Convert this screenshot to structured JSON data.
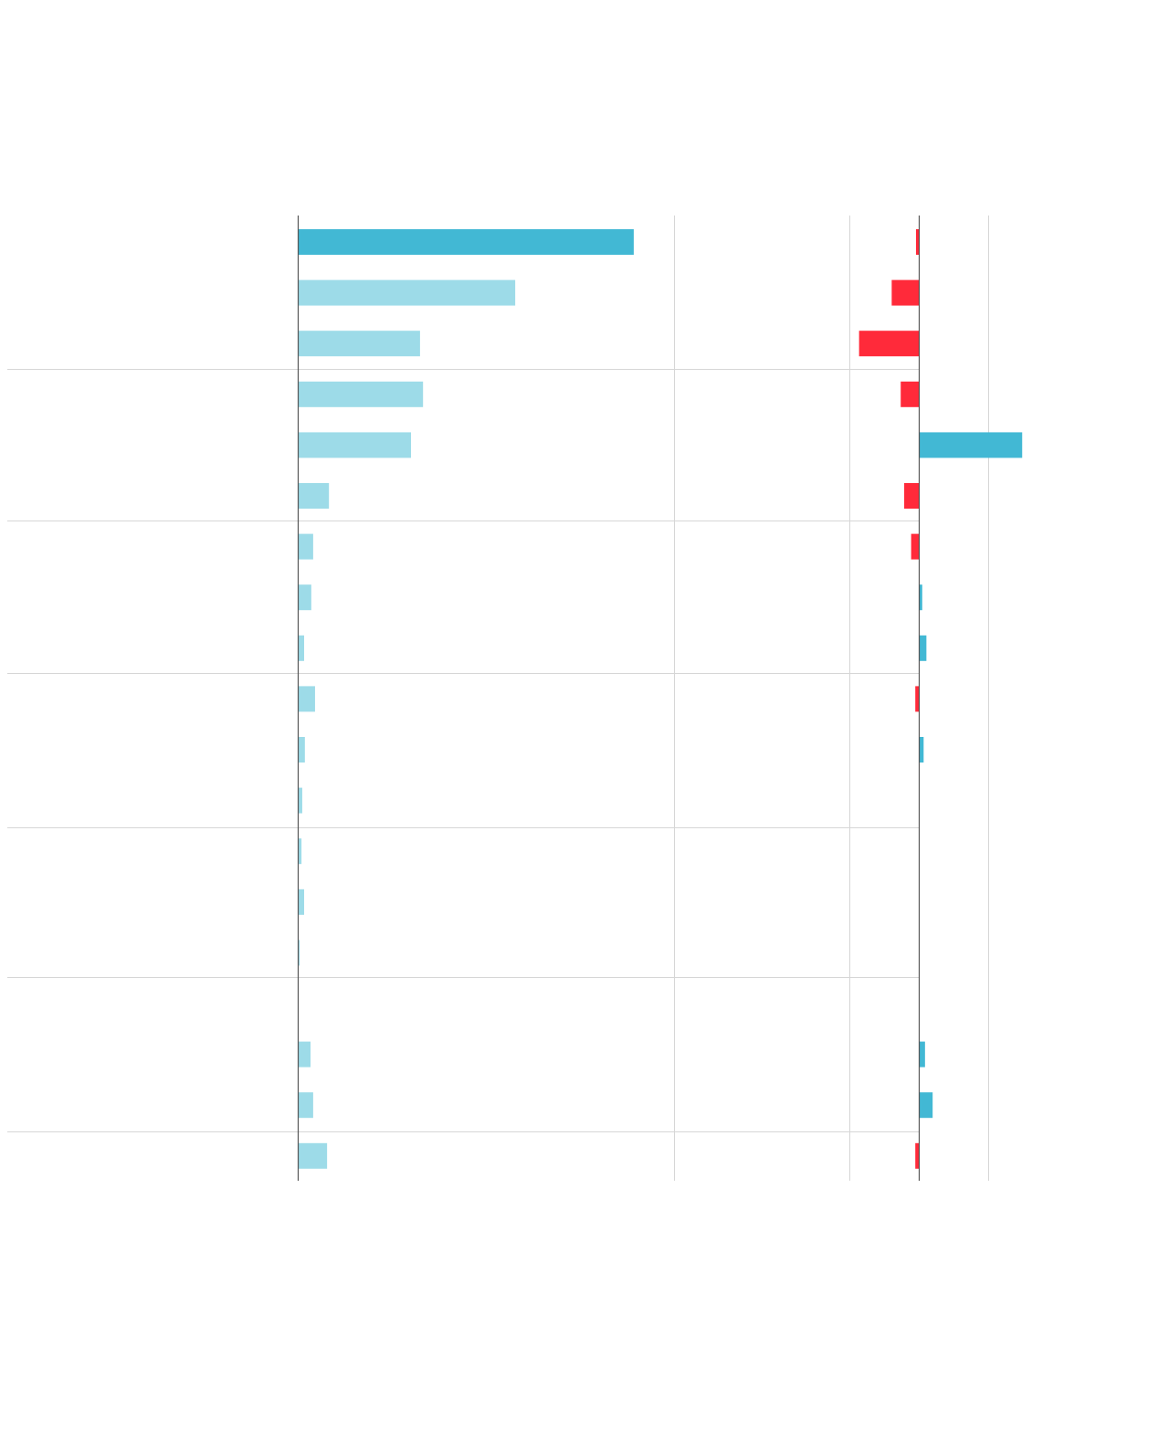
{
  "chart_data": [
    {
      "type": "bar",
      "orientation": "horizontal",
      "values": [
        89.3,
        57.8,
        32.5,
        33.3,
        30.1,
        8.3,
        4.1,
        3.6,
        1.7,
        4.6,
        1.9,
        1.2,
        1.0,
        1.7,
        0.5,
        0.2,
        3.4,
        4.1,
        7.8
      ],
      "colors": [
        "#42b8d4",
        "#9ddbe8",
        "#9ddbe8",
        "#9ddbe8",
        "#9ddbe8",
        "#9ddbe8",
        "#9ddbe8",
        "#9ddbe8",
        "#9ddbe8",
        "#9ddbe8",
        "#9ddbe8",
        "#9ddbe8",
        "#9ddbe8",
        "#9ddbe8",
        "#9ddbe8",
        "#9ddbe8",
        "#9ddbe8",
        "#9ddbe8",
        "#9ddbe8"
      ],
      "xlim": [
        0,
        100
      ],
      "gridlines": [
        0,
        100
      ]
    },
    {
      "type": "bar",
      "orientation": "horizontal",
      "values": [
        -0.4,
        -3.9,
        -8.6,
        -2.6,
        14.9,
        -2.1,
        -1.1,
        0.5,
        1.1,
        -0.5,
        0.7,
        0,
        0,
        0,
        0,
        0,
        0.9,
        2.0,
        -0.5
      ],
      "positive_color": "#42b8d4",
      "negative_color": "#ff2a3a",
      "xlim": [
        -10,
        15
      ],
      "gridlines": [
        -10,
        0,
        10
      ]
    }
  ]
}
